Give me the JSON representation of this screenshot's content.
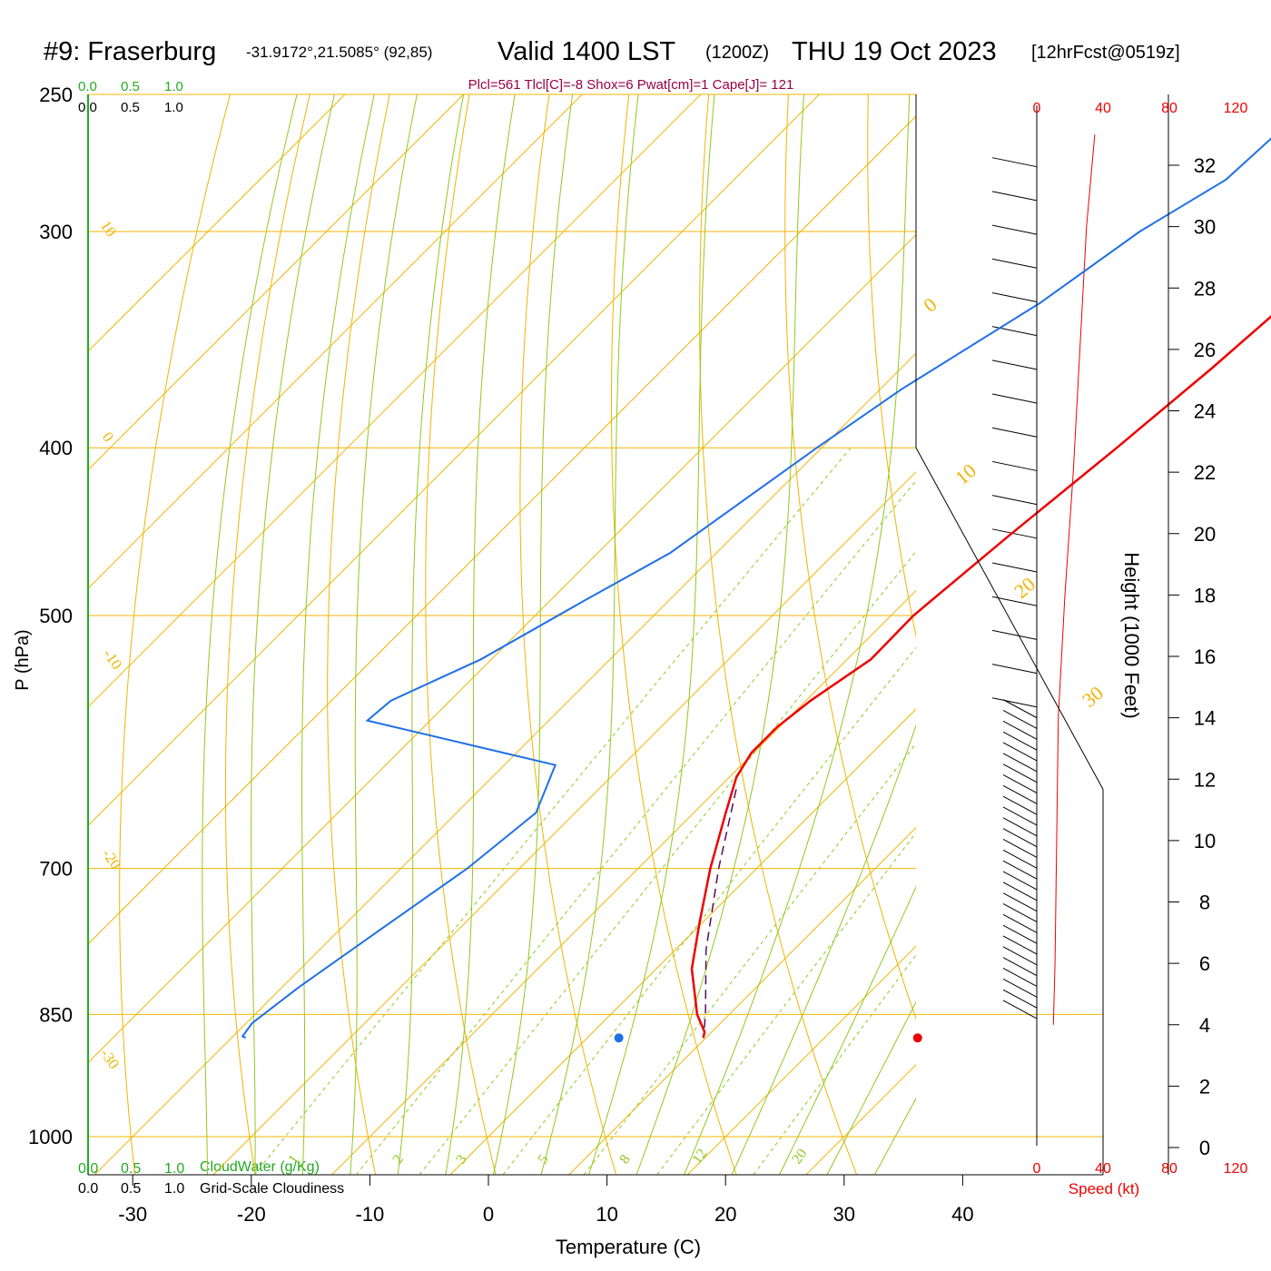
{
  "header": {
    "station": "#9: Fraserburg",
    "coords": "-31.9172°,21.5085° (92,85)",
    "valid": "Valid 1400 LST",
    "zulu": "(1200Z)",
    "date": "THU 19 Oct 2023",
    "forecast": "[12hrFcst@0519z]",
    "indices": "Plcl=561 Tlcl[C]=-8 Shox=6 Pwat[cm]=1 Cape[J]= 121"
  },
  "legend": {
    "cloud_scale": [
      "0.0",
      "0.5",
      "1.0"
    ],
    "cloudiness_scale": [
      "0.0",
      "0.5",
      "1.0"
    ],
    "cloudwater_label": "CloudWater (g/Kg)",
    "cloudiness_label": "Grid-Scale Cloudiness",
    "speed_label": "Speed (kt)",
    "speed_ticks": [
      "0",
      "40",
      "80",
      "120"
    ]
  },
  "colors": {
    "temperature": "#ee0000",
    "dewpoint": "#1e6fe8",
    "parcel": "#5a0a5a",
    "isotherm": "#f0b400",
    "dry_adiabat": "#f0b400",
    "moist_adiabat": "#90c820",
    "mixing_ratio": "#90c820",
    "title": "#000000",
    "indices": "#990044",
    "cloud": "#22aa22",
    "speed": "#ee0000",
    "frame": "#000000"
  },
  "chart_data": {
    "type": "line",
    "subtype": "skew-T log-P sounding",
    "xlabel": "Temperature (C)",
    "ylabel": "P (hPa)",
    "y2label": "Height (1000 Feet)",
    "x_ticks": [
      -30,
      -20,
      -10,
      0,
      10,
      20,
      30,
      40
    ],
    "p_ticks": [
      250,
      300,
      400,
      500,
      700,
      850,
      1000
    ],
    "height_ticks": [
      0,
      2,
      4,
      6,
      8,
      10,
      12,
      14,
      16,
      18,
      20,
      22,
      24,
      26,
      28,
      30,
      32
    ],
    "xlim": [
      -34,
      46
    ],
    "plim": [
      1060,
      250
    ],
    "dry_adiabat_labels": [
      "10",
      "0",
      "-10",
      "-20",
      "-30"
    ],
    "moist_adiabat_labels": [
      "0",
      "10",
      "20",
      "30"
    ],
    "mixing_ratio_labels": [
      "1",
      "2",
      "3",
      "5",
      "8",
      "12",
      "20"
    ],
    "temperature": [
      [
        250,
        -2.2
      ],
      [
        280,
        -2.0
      ],
      [
        300,
        -2.6
      ],
      [
        330,
        -3.0
      ],
      [
        360,
        -3.8
      ],
      [
        400,
        -5.1
      ],
      [
        450,
        -6.8
      ],
      [
        500,
        -8.1
      ],
      [
        530,
        -8.0
      ],
      [
        560,
        -9.6
      ],
      [
        580,
        -10.2
      ],
      [
        600,
        -10.2
      ],
      [
        620,
        -9.4
      ],
      [
        650,
        -7.3
      ],
      [
        700,
        -3.9
      ],
      [
        750,
        -0.4
      ],
      [
        800,
        3.0
      ],
      [
        850,
        7.3
      ],
      [
        870,
        9.4
      ],
      [
        877,
        9.8
      ]
    ],
    "dewpoint": [
      [
        250,
        -17.8
      ],
      [
        280,
        -18.5
      ],
      [
        300,
        -21.4
      ],
      [
        330,
        -23.8
      ],
      [
        370,
        -28.2
      ],
      [
        400,
        -30.4
      ],
      [
        460,
        -33.9
      ],
      [
        490,
        -37.1
      ],
      [
        530,
        -40.9
      ],
      [
        560,
        -45.0
      ],
      [
        575,
        -45.3
      ],
      [
        610,
        -25.7
      ],
      [
        650,
        -23.3
      ],
      [
        700,
        -24.4
      ],
      [
        760,
        -26.6
      ],
      [
        820,
        -28.6
      ],
      [
        860,
        -29.5
      ],
      [
        875,
        -29.2
      ],
      [
        877,
        -28.8
      ]
    ],
    "parcel": [
      [
        630,
        -8.4
      ],
      [
        700,
        -3.2
      ],
      [
        780,
        2.6
      ],
      [
        850,
        8.0
      ],
      [
        877,
        9.8
      ]
    ],
    "surface_temperature_marker": [
      877,
      36.2
    ],
    "surface_dewpoint_marker": [
      877,
      11.0
    ],
    "wind_profile_note": "wind barbs from ~4 to ~33 kft, speeds ~10-25 kt",
    "speed_profile": [
      [
        4,
        10
      ],
      [
        6,
        11
      ],
      [
        10,
        12
      ],
      [
        14,
        13
      ],
      [
        18,
        17
      ],
      [
        22,
        22
      ],
      [
        26,
        26
      ],
      [
        30,
        30
      ],
      [
        33,
        35
      ]
    ]
  }
}
